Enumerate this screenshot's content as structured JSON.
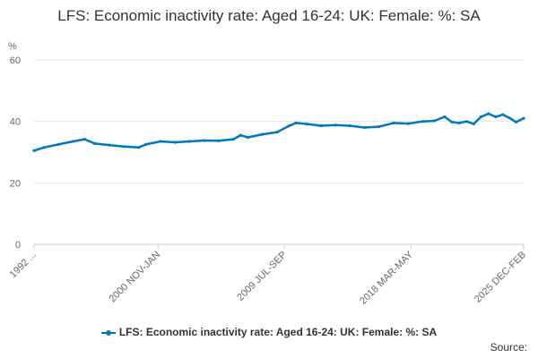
{
  "chart_data": {
    "type": "line",
    "title": "LFS: Economic inactivity rate: Aged 16-24: UK: Female: %: SA",
    "ylabel": "%",
    "xlabel": "",
    "ylim": [
      0,
      60
    ],
    "yticks": [
      0,
      20,
      40,
      60
    ],
    "x_range": [
      1992.33,
      2025.92
    ],
    "x_ticks": [
      {
        "x": 1992.33,
        "label": "1992 ..."
      },
      {
        "x": 2000.83,
        "label": "2000 NOV-JAN"
      },
      {
        "x": 2009.5,
        "label": "2009 JUL-SEP"
      },
      {
        "x": 2018.17,
        "label": "2018 MAR-MAY"
      },
      {
        "x": 2025.92,
        "label": "2025 DEC-FEB"
      }
    ],
    "grid": "horizontal",
    "legend_position": "bottom",
    "color": "#0077c0",
    "series": [
      {
        "name": "LFS: Economic inactivity rate: Aged 16-24: UK: Female: %: SA",
        "x": [
          1992.33,
          1993.0,
          1994.0,
          1995.0,
          1995.8,
          1996.5,
          1997.5,
          1998.5,
          1999.5,
          2000.0,
          2001.0,
          2002.0,
          2003.0,
          2004.0,
          2005.0,
          2006.0,
          2006.5,
          2007.0,
          2008.0,
          2009.0,
          2009.8,
          2010.3,
          2011.0,
          2012.0,
          2013.0,
          2014.0,
          2015.0,
          2016.0,
          2017.0,
          2018.0,
          2019.0,
          2019.8,
          2020.5,
          2021.0,
          2021.5,
          2022.0,
          2022.5,
          2023.0,
          2023.5,
          2024.0,
          2024.5,
          2025.0,
          2025.4,
          2025.92
        ],
        "y": [
          30.5,
          31.5,
          32.5,
          33.5,
          34.2,
          32.8,
          32.3,
          31.8,
          31.5,
          32.5,
          33.5,
          33.2,
          33.5,
          33.8,
          33.7,
          34.2,
          35.5,
          34.8,
          35.8,
          36.5,
          38.5,
          39.5,
          39.2,
          38.6,
          38.8,
          38.6,
          38.0,
          38.3,
          39.5,
          39.3,
          40.0,
          40.2,
          41.5,
          39.8,
          39.5,
          40.0,
          39.2,
          41.5,
          42.5,
          41.5,
          42.2,
          41.0,
          39.8,
          41.0
        ]
      }
    ]
  },
  "source_label": "Source:"
}
